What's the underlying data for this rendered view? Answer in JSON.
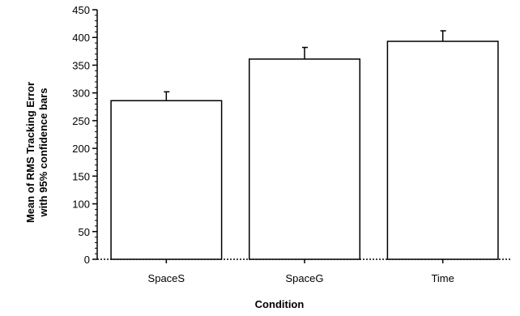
{
  "chart_data": {
    "type": "bar",
    "title": "",
    "xlabel": "Condition",
    "ylabel_line1": "Mean of RMS Tracking Error",
    "ylabel_line2": "with 95% confidence bars",
    "categories": [
      "SpaceS",
      "SpaceG",
      "Time"
    ],
    "values": [
      286,
      361,
      393
    ],
    "error_upper": [
      302,
      382,
      412
    ],
    "ylim": [
      0,
      450
    ],
    "yticks": [
      0,
      50,
      100,
      150,
      200,
      250,
      300,
      350,
      400,
      450
    ],
    "grid": false,
    "bar_fill": "#ffffff",
    "bar_stroke": "#000000"
  }
}
